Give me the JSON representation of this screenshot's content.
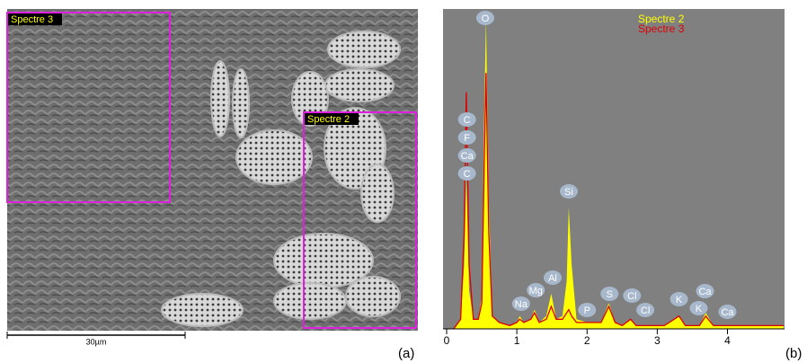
{
  "panel_a": {
    "regions": [
      "Spectre 3",
      "Spectre 2"
    ],
    "scale_bar": "30µm",
    "label": "(a)"
  },
  "panel_b_label": "(b)",
  "chart_data": {
    "type": "spectrum",
    "x": [
      0.1,
      0.2,
      0.25,
      0.28,
      0.32,
      0.38,
      0.45,
      0.5,
      0.53,
      0.56,
      0.6,
      0.65,
      0.75,
      0.9,
      1.0,
      1.04,
      1.1,
      1.2,
      1.25,
      1.32,
      1.42,
      1.49,
      1.56,
      1.65,
      1.71,
      1.74,
      1.78,
      1.85,
      2.0,
      2.2,
      2.31,
      2.4,
      2.5,
      2.62,
      2.7,
      2.9,
      3.1,
      3.31,
      3.4,
      3.6,
      3.69,
      3.8,
      4.0,
      4.3,
      4.6,
      4.8
    ],
    "series": [
      {
        "name": "Spectre 2",
        "color": "#ffff00",
        "fill": true,
        "values": [
          0,
          3,
          20,
          48,
          12,
          3,
          3,
          10,
          60,
          97,
          40,
          4,
          2,
          1,
          2,
          4,
          2,
          3,
          6,
          2,
          4,
          11,
          3,
          4,
          15,
          38,
          20,
          3,
          2,
          2,
          8,
          2,
          1,
          3,
          1,
          1,
          1,
          4,
          1,
          1,
          5,
          1,
          1,
          1,
          1,
          1
        ]
      },
      {
        "name": "Spectre 3",
        "color": "#dd0000",
        "fill": false,
        "values": [
          0,
          3,
          30,
          74,
          20,
          3,
          3,
          8,
          45,
          80,
          30,
          4,
          2,
          1,
          2,
          3,
          2,
          3,
          5,
          2,
          3,
          7,
          3,
          3,
          5,
          6,
          4,
          2,
          2,
          2,
          7,
          2,
          1,
          3,
          1,
          1,
          1,
          4,
          1,
          1,
          4,
          1,
          1,
          1,
          1,
          1
        ]
      }
    ],
    "xlim": [
      0,
      4.8
    ],
    "ylim": [
      0,
      100
    ],
    "xticks": [
      0,
      1,
      2,
      3,
      4
    ],
    "peak_labels": [
      {
        "label": "O",
        "x": 0.55
      },
      {
        "label": "C",
        "x": 0.29
      },
      {
        "label": "F",
        "x": 0.29
      },
      {
        "label": "Ca",
        "x": 0.29
      },
      {
        "label": "C",
        "x": 0.29
      },
      {
        "label": "Si",
        "x": 1.74
      },
      {
        "label": "Na",
        "x": 1.06
      },
      {
        "label": "Mg",
        "x": 1.27
      },
      {
        "label": "Al",
        "x": 1.51
      },
      {
        "label": "P",
        "x": 2.0
      },
      {
        "label": "S",
        "x": 2.32
      },
      {
        "label": "Cl",
        "x": 2.64
      },
      {
        "label": "Cl",
        "x": 2.83
      },
      {
        "label": "K",
        "x": 3.31
      },
      {
        "label": "K",
        "x": 3.59
      },
      {
        "label": "Ca",
        "x": 3.68
      },
      {
        "label": "Ca",
        "x": 4.0
      }
    ]
  }
}
